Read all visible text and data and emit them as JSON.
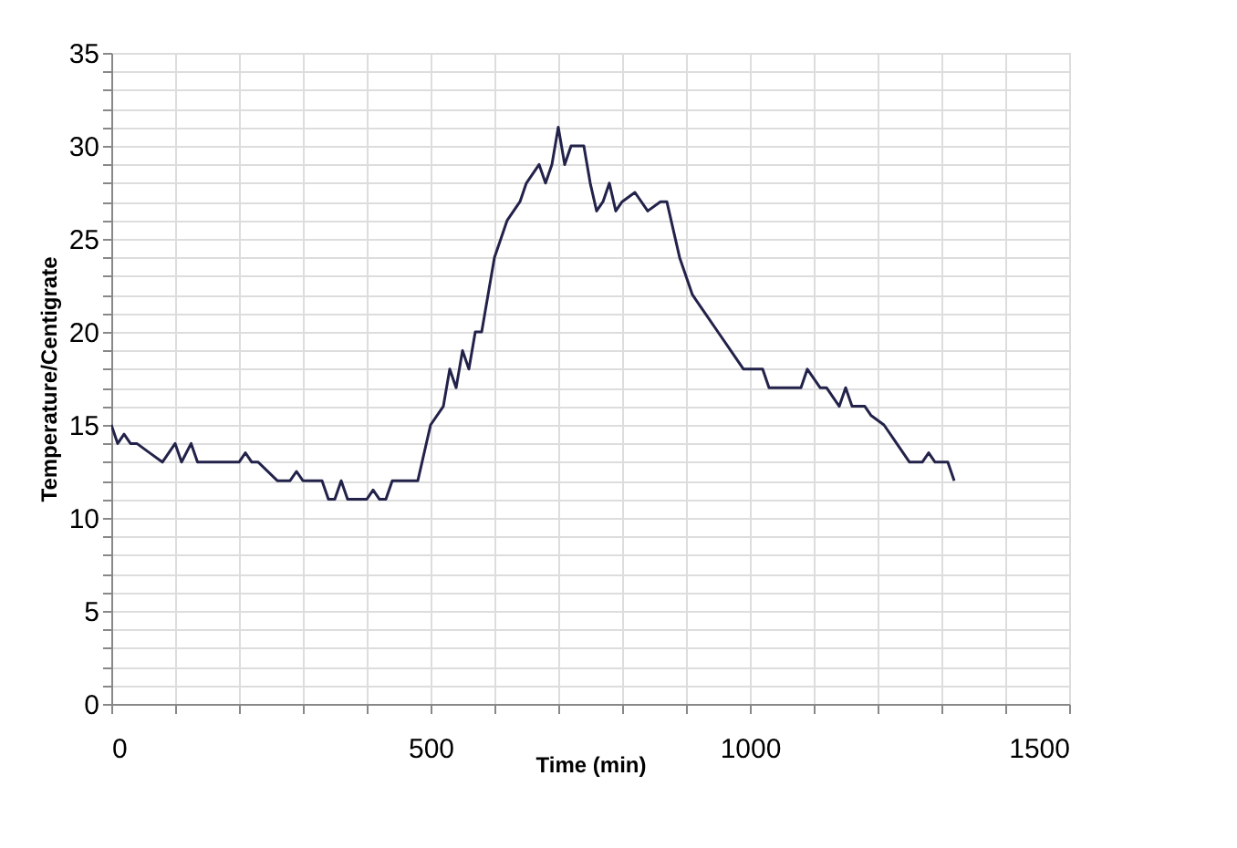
{
  "chart_data": {
    "type": "line",
    "xlabel": "Time (min)",
    "ylabel": "Temperature/Centigrate",
    "series": [
      {
        "color": "#22224a",
        "x": [
          0,
          10,
          20,
          30,
          40,
          60,
          80,
          100,
          110,
          125,
          135,
          150,
          170,
          200,
          210,
          220,
          230,
          260,
          270,
          280,
          290,
          300,
          320,
          330,
          340,
          350,
          360,
          370,
          380,
          400,
          410,
          420,
          430,
          440,
          460,
          480,
          500,
          520,
          530,
          540,
          550,
          560,
          570,
          580,
          600,
          620,
          640,
          650,
          660,
          670,
          680,
          690,
          700,
          710,
          720,
          730,
          740,
          750,
          760,
          770,
          780,
          790,
          800,
          820,
          840,
          860,
          870,
          890,
          910,
          930,
          950,
          970,
          990,
          1000,
          1020,
          1030,
          1060,
          1080,
          1090,
          1110,
          1120,
          1140,
          1150,
          1160,
          1180,
          1190,
          1210,
          1230,
          1250,
          1270,
          1280,
          1290,
          1300,
          1310,
          1320
        ],
        "values": [
          15,
          14,
          14.5,
          14,
          14,
          13.5,
          13,
          14,
          13,
          14,
          13,
          13,
          13,
          13,
          13.5,
          13,
          13,
          12,
          12,
          12,
          12.5,
          12,
          12,
          12,
          11,
          11,
          12,
          11,
          11,
          11,
          11.5,
          11,
          11,
          12,
          12,
          12,
          15,
          16,
          18,
          17,
          19,
          18,
          20,
          20,
          24,
          26,
          27,
          28,
          28.5,
          29,
          28,
          29,
          31,
          29,
          30,
          30,
          30,
          28,
          26.5,
          27,
          28,
          26.5,
          27,
          27.5,
          26.5,
          27,
          27,
          24,
          22,
          21,
          20,
          19,
          18,
          18,
          18,
          17,
          17,
          17,
          18,
          17,
          17,
          16,
          17,
          16,
          16,
          15.5,
          15,
          14,
          13,
          13,
          13.5,
          13,
          13,
          13,
          12
        ]
      }
    ],
    "xlim": [
      0,
      1500
    ],
    "ylim": [
      0,
      35
    ],
    "xticks": [
      0,
      {
        "value": 100,
        "label": null
      },
      {
        "value": 200,
        "label": null
      },
      {
        "value": 300,
        "label": null
      },
      {
        "value": 400,
        "label": null
      },
      500,
      {
        "value": 600,
        "label": null
      },
      {
        "value": 700,
        "label": null
      },
      {
        "value": 800,
        "label": null
      },
      {
        "value": 900,
        "label": null
      },
      1000,
      {
        "value": 1100,
        "label": null
      },
      {
        "value": 1200,
        "label": null
      },
      {
        "value": 1300,
        "label": null
      },
      {
        "value": 1400,
        "label": null
      },
      1500
    ],
    "yticks": [
      0,
      {
        "value": 1,
        "label": null
      },
      {
        "value": 2,
        "label": null
      },
      {
        "value": 3,
        "label": null
      },
      {
        "value": 4,
        "label": null
      },
      5,
      {
        "value": 6,
        "label": null
      },
      {
        "value": 7,
        "label": null
      },
      {
        "value": 8,
        "label": null
      },
      {
        "value": 9,
        "label": null
      },
      10,
      {
        "value": 11,
        "label": null
      },
      {
        "value": 12,
        "label": null
      },
      {
        "value": 13,
        "label": null
      },
      {
        "value": 14,
        "label": null
      },
      15,
      {
        "value": 16,
        "label": null
      },
      {
        "value": 17,
        "label": null
      },
      {
        "value": 18,
        "label": null
      },
      {
        "value": 19,
        "label": null
      },
      20,
      {
        "value": 21,
        "label": null
      },
      {
        "value": 22,
        "label": null
      },
      {
        "value": 23,
        "label": null
      },
      {
        "value": 24,
        "label": null
      },
      25,
      {
        "value": 26,
        "label": null
      },
      {
        "value": 27,
        "label": null
      },
      {
        "value": 28,
        "label": null
      },
      {
        "value": 29,
        "label": null
      },
      30,
      {
        "value": 31,
        "label": null
      },
      {
        "value": 32,
        "label": null
      },
      {
        "value": 33,
        "label": null
      },
      {
        "value": 34,
        "label": null
      },
      35
    ],
    "grid": true,
    "marker": "none",
    "line_style": "solid"
  }
}
